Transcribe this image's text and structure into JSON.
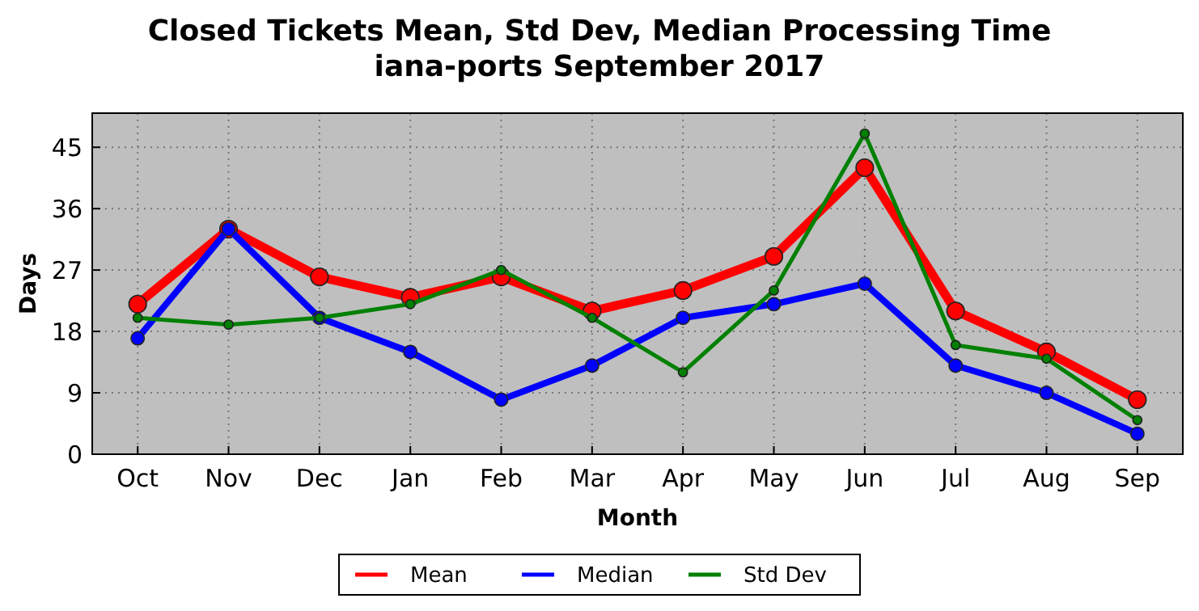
{
  "chart_data": {
    "type": "line",
    "title": "Closed Tickets Mean, Std Dev, Median Processing Time\niana-ports September 2017",
    "xlabel": "Month",
    "ylabel": "Days",
    "categories": [
      "Oct",
      "Nov",
      "Dec",
      "Jan",
      "Feb",
      "Mar",
      "Apr",
      "May",
      "Jun",
      "Jul",
      "Aug",
      "Sep"
    ],
    "series": [
      {
        "name": "Mean",
        "color": "#ff0000",
        "values": [
          22,
          33,
          26,
          23,
          26,
          21,
          24,
          29,
          42,
          21,
          15,
          8
        ]
      },
      {
        "name": "Median",
        "color": "#0000ff",
        "values": [
          17,
          33,
          20,
          15,
          8,
          13,
          20,
          22,
          25,
          13,
          9,
          3
        ]
      },
      {
        "name": "Std Dev",
        "color": "#008000",
        "values": [
          20,
          19,
          20,
          22,
          27,
          20,
          12,
          24,
          47,
          16,
          14,
          5
        ]
      }
    ],
    "ylim": [
      0,
      50
    ],
    "yticks": [
      0,
      9,
      18,
      27,
      36,
      45
    ],
    "grid": true,
    "legend": "bottom",
    "marker": "circle",
    "line_style": "solid"
  }
}
